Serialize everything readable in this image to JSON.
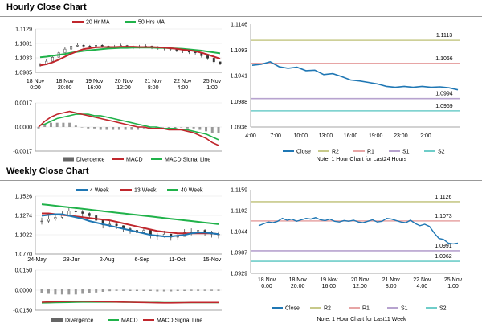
{
  "sections": {
    "hourly_title": "Hourly Close Chart",
    "weekly_title": "Weekly Close Chart"
  },
  "colors": {
    "red": "#c0272d",
    "green": "#20b24a",
    "blue": "#1f77b4",
    "purple": "#b07cc0",
    "tan": "#c7c98a",
    "pink": "#e7a5a5",
    "lavender": "#b7a3cf",
    "teal": "#6fcdc9",
    "gray": "#777777",
    "price": "#333333"
  },
  "chart_data": [
    {
      "id": "hourly_price",
      "type": "line",
      "title": "Hourly Close Chart",
      "x_ticks": [
        "18 Nov\n0:00",
        "18 Nov\n20:00",
        "19 Nov\n16:00",
        "20 Nov\n12:00",
        "21 Nov\n8:00",
        "22 Nov\n4:00",
        "25 Nov\n1:00"
      ],
      "y_ticks": [
        "1.1129",
        "1.1081",
        "1.1033",
        "1.0985"
      ],
      "ylim": [
        1.0985,
        1.1129
      ],
      "legend": [
        "20 Hr MA",
        "50 Hrs MA"
      ],
      "series": [
        {
          "name": "Close",
          "values": [
            1.101,
            1.1022,
            1.1035,
            1.105,
            1.1062,
            1.1072,
            1.1075,
            1.1072,
            1.107,
            1.1075,
            1.1072,
            1.1068,
            1.107,
            1.1074,
            1.107,
            1.1068,
            1.107,
            1.1072,
            1.1068,
            1.1066,
            1.1064,
            1.1062,
            1.1058,
            1.1055,
            1.1052,
            1.105,
            1.104,
            1.1032,
            1.102,
            1.1015
          ]
        },
        {
          "name": "20 Hr MA",
          "values": [
            1.1008,
            1.1012,
            1.1018,
            1.1027,
            1.1037,
            1.1047,
            1.1055,
            1.1062,
            1.1065,
            1.1068,
            1.1069,
            1.1069,
            1.1069,
            1.107,
            1.107,
            1.107,
            1.1069,
            1.1069,
            1.1069,
            1.1068,
            1.1067,
            1.1065,
            1.1063,
            1.106,
            1.1058,
            1.1055,
            1.105,
            1.1044,
            1.1037,
            1.103
          ]
        },
        {
          "name": "50 Hrs MA",
          "values": [
            1.1035,
            1.1037,
            1.104,
            1.1043,
            1.1046,
            1.105,
            1.1053,
            1.1056,
            1.1058,
            1.106,
            1.1062,
            1.1064,
            1.1065,
            1.1066,
            1.1066,
            1.1067,
            1.1067,
            1.1067,
            1.1067,
            1.1066,
            1.1066,
            1.1065,
            1.1064,
            1.1063,
            1.1061,
            1.1059,
            1.1057,
            1.1054,
            1.1051,
            1.1048
          ]
        }
      ]
    },
    {
      "id": "hourly_macd",
      "type": "line",
      "y_ticks": [
        "0.0017",
        "0.0000",
        "-0.0017"
      ],
      "ylim": [
        -0.0017,
        0.0017
      ],
      "legend": [
        "Divergence",
        "MACD",
        "MACD Signal Line"
      ],
      "series": [
        {
          "name": "MACD",
          "values": [
            0.0,
            0.0004,
            0.0007,
            0.0009,
            0.001,
            0.0011,
            0.001,
            0.0009,
            0.0008,
            0.0007,
            0.0006,
            0.0005,
            0.0004,
            0.0003,
            0.0002,
            0.0001,
            0.0,
            0.0,
            -0.0001,
            -0.0001,
            -0.0001,
            -0.0002,
            -0.0002,
            -0.0002,
            -0.0003,
            -0.0004,
            -0.0006,
            -0.0008,
            -0.0011,
            -0.0013
          ]
        },
        {
          "name": "MACD Signal Line",
          "values": [
            0.0001,
            0.0002,
            0.0004,
            0.0006,
            0.0007,
            0.0008,
            0.0009,
            0.0009,
            0.0009,
            0.0008,
            0.0008,
            0.0007,
            0.0006,
            0.0005,
            0.0004,
            0.0003,
            0.0002,
            0.0001,
            0.0,
            0.0,
            -0.0001,
            -0.0001,
            -0.0001,
            -0.0002,
            -0.0002,
            -0.0003,
            -0.0004,
            -0.0005,
            -0.0007,
            -0.0009
          ]
        },
        {
          "name": "Divergence",
          "values": [
            -0.0001,
            0.0002,
            0.0003,
            0.0003,
            0.0003,
            0.0003,
            0.0001,
            0.0,
            -0.0001,
            -0.0001,
            -0.0002,
            -0.0002,
            -0.0002,
            -0.0002,
            -0.0002,
            -0.0002,
            -0.0002,
            -0.0001,
            -0.0001,
            -0.0001,
            0.0,
            -0.0001,
            -0.0001,
            0.0,
            -0.0001,
            -0.0001,
            -0.0002,
            -0.0003,
            -0.0004,
            -0.0004
          ]
        }
      ]
    },
    {
      "id": "hourly_24h",
      "type": "line",
      "x_ticks": [
        "4:00",
        "7:00",
        "10:00",
        "13:00",
        "16:00",
        "19:00",
        "23:00",
        "2:00"
      ],
      "y_ticks": [
        "1.1146",
        "1.1093",
        "1.1041",
        "1.0988",
        "1.0936"
      ],
      "ylim": [
        1.0936,
        1.1146
      ],
      "levels": [
        {
          "name": "R2",
          "value": 1.1113,
          "label": "1.1113"
        },
        {
          "name": "R1",
          "value": 1.1066,
          "label": "1.1066"
        },
        {
          "name": "S1",
          "value": 1.0994,
          "label": "1.0994"
        },
        {
          "name": "S2",
          "value": 1.0969,
          "label": "1.0969"
        }
      ],
      "legend": [
        "Close",
        "R2",
        "R1",
        "S1",
        "S2"
      ],
      "note": "Note: 1 Hour Chart for Last24 Hours",
      "series": [
        {
          "name": "Close",
          "values": [
            1.1062,
            1.1064,
            1.1069,
            1.1059,
            1.1056,
            1.1058,
            1.1051,
            1.1052,
            1.1043,
            1.1045,
            1.1039,
            1.1032,
            1.103,
            1.1027,
            1.1024,
            1.1019,
            1.1017,
            1.1019,
            1.1017,
            1.1019,
            1.1017,
            1.1018,
            1.1016,
            1.1012
          ]
        }
      ]
    },
    {
      "id": "weekly_price",
      "type": "line",
      "title": "Weekly Close Chart",
      "x_ticks": [
        "24-May",
        "28-Jun",
        "2-Aug",
        "6-Sep",
        "11-Oct",
        "15-Nov"
      ],
      "y_ticks": [
        "1.1526",
        "1.1274",
        "1.1022",
        "1.0770"
      ],
      "ylim": [
        1.077,
        1.1526
      ],
      "legend": [
        "4 Week",
        "13 Week",
        "40 Week"
      ],
      "series": [
        {
          "name": "Close",
          "values": [
            1.12,
            1.1225,
            1.125,
            1.128,
            1.133,
            1.132,
            1.13,
            1.127,
            1.121,
            1.115,
            1.116,
            1.114,
            1.11,
            1.108,
            1.105,
            1.108,
            1.102,
            1.1,
            1.103,
            1.099,
            1.1,
            1.105,
            1.106,
            1.108,
            1.105,
            1.103,
            1.102
          ]
        },
        {
          "name": "4 Week",
          "values": [
            1.127,
            1.128,
            1.129,
            1.129,
            1.127,
            1.125,
            1.123,
            1.12,
            1.118,
            1.116,
            1.114,
            1.112,
            1.11,
            1.108,
            1.106,
            1.104,
            1.102,
            1.101,
            1.1,
            1.1,
            1.101,
            1.102,
            1.104,
            1.105,
            1.105,
            1.104,
            1.103
          ]
        },
        {
          "name": "13 Week",
          "values": [
            1.13,
            1.13,
            1.129,
            1.128,
            1.127,
            1.126,
            1.125,
            1.124,
            1.123,
            1.122,
            1.121,
            1.119,
            1.117,
            1.115,
            1.113,
            1.111,
            1.109,
            1.107,
            1.106,
            1.105,
            1.104,
            1.104,
            1.104,
            1.104,
            1.104,
            1.104,
            1.103
          ]
        },
        {
          "name": "40 Week",
          "values": [
            1.142,
            1.141,
            1.14,
            1.139,
            1.138,
            1.137,
            1.136,
            1.135,
            1.134,
            1.133,
            1.132,
            1.131,
            1.13,
            1.129,
            1.128,
            1.127,
            1.126,
            1.125,
            1.124,
            1.123,
            1.122,
            1.121,
            1.12,
            1.119,
            1.118,
            1.117,
            1.116
          ]
        }
      ]
    },
    {
      "id": "weekly_macd",
      "type": "line",
      "y_ticks": [
        "0.0150",
        "0.0000",
        "-0.0150"
      ],
      "ylim": [
        -0.015,
        0.015
      ],
      "legend": [
        "Divergence",
        "MACD",
        "MACD Signal Line"
      ],
      "series": [
        {
          "name": "MACD",
          "values": [
            -0.009,
            -0.0088,
            -0.0086,
            -0.0085,
            -0.0084,
            -0.0083,
            -0.0083,
            -0.0084,
            -0.0085,
            -0.0086,
            -0.0087,
            -0.0088,
            -0.0089,
            -0.009,
            -0.0091,
            -0.0092,
            -0.0093,
            -0.0094,
            -0.0095,
            -0.0095,
            -0.0094,
            -0.0093,
            -0.0092,
            -0.0092,
            -0.0092,
            -0.0092,
            -0.0092
          ]
        },
        {
          "name": "MACD Signal Line",
          "values": [
            -0.0095,
            -0.0094,
            -0.0093,
            -0.0092,
            -0.0091,
            -0.009,
            -0.0089,
            -0.0089,
            -0.0089,
            -0.0089,
            -0.0089,
            -0.0089,
            -0.009,
            -0.009,
            -0.0091,
            -0.0091,
            -0.0092,
            -0.0092,
            -0.0093,
            -0.0093,
            -0.0093,
            -0.0093,
            -0.0093,
            -0.0093,
            -0.0093,
            -0.0093,
            -0.0093
          ]
        },
        {
          "name": "Divergence",
          "values": [
            0.0005,
            0.0006,
            0.0007,
            0.0007,
            0.0007,
            0.0007,
            0.0006,
            0.0005,
            0.0004,
            0.0003,
            0.0002,
            0.0001,
            0.0001,
            0.0,
            0.0,
            -0.0001,
            -0.0001,
            -0.0002,
            -0.0002,
            -0.0002,
            -0.0001,
            0.0,
            0.0001,
            0.0001,
            0.0001,
            0.0001,
            0.0001
          ]
        }
      ]
    },
    {
      "id": "weekly_lastweek",
      "type": "line",
      "x_ticks": [
        "18 Nov\n0:00",
        "18 Nov\n20:00",
        "19 Nov\n16:00",
        "20 Nov\n12:00",
        "21 Nov\n8:00",
        "22 Nov\n4:00",
        "25 Nov\n1:00"
      ],
      "y_ticks": [
        "1.1159",
        "1.1102",
        "1.1044",
        "1.0987",
        "1.0929"
      ],
      "ylim": [
        1.0929,
        1.1159
      ],
      "levels": [
        {
          "name": "R2",
          "value": 1.1126,
          "label": "1.1126"
        },
        {
          "name": "R1",
          "value": 1.1073,
          "label": "1.1073"
        },
        {
          "name": "S1",
          "value": 1.0991,
          "label": "1.0991"
        },
        {
          "name": "S2",
          "value": 1.0962,
          "label": "1.0962"
        }
      ],
      "legend": [
        "Close",
        "R2",
        "R1",
        "S1",
        "S2"
      ],
      "note": "Note: 1 Hour Chart for Last11 Week",
      "series": [
        {
          "name": "Close",
          "values": [
            1.106,
            1.1065,
            1.107,
            1.1068,
            1.1072,
            1.108,
            1.1075,
            1.1078,
            1.1072,
            1.1076,
            1.108,
            1.1078,
            1.1082,
            1.1076,
            1.1074,
            1.1078,
            1.1072,
            1.107,
            1.1074,
            1.1072,
            1.1075,
            1.107,
            1.1068,
            1.1072,
            1.1076,
            1.107,
            1.1072,
            1.108,
            1.1078,
            1.1074,
            1.107,
            1.1068,
            1.1075,
            1.1066,
            1.106,
            1.1064,
            1.1058,
            1.104,
            1.1025,
            1.1022,
            1.1012,
            1.101,
            1.1012
          ]
        }
      ]
    }
  ]
}
